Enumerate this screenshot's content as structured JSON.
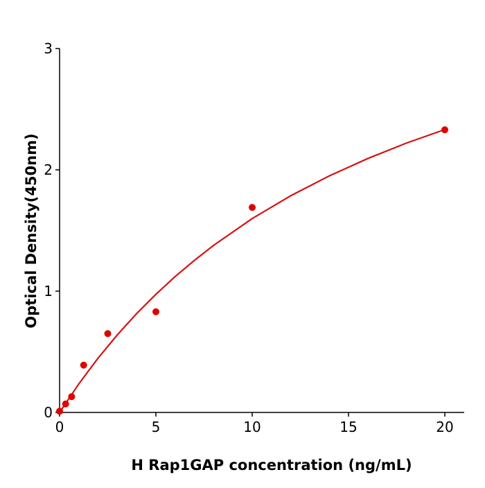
{
  "chart_data": {
    "type": "scatter",
    "title": "",
    "xlabel": "H  Rap1GAP concentration (ng/mL)",
    "ylabel": "Optical Density(450nm)",
    "xlim": [
      0,
      21
    ],
    "ylim": [
      0,
      3
    ],
    "xticks": [
      0,
      5,
      10,
      15,
      20
    ],
    "yticks": [
      0,
      1,
      2,
      3
    ],
    "grid": false,
    "colors": {
      "points": "#e00000",
      "curve": "#d81010",
      "axes": "#000000"
    },
    "series": [
      {
        "type": "scatter",
        "x": [
          0,
          0.3125,
          0.625,
          1.25,
          2.5,
          5,
          10,
          20
        ],
        "y": [
          0.01,
          0.07,
          0.13,
          0.39,
          0.65,
          0.83,
          1.69,
          2.33
        ]
      },
      {
        "type": "line",
        "fit": "saturation curve",
        "x": [
          0,
          1,
          2,
          3,
          4,
          5,
          6,
          7,
          8,
          10,
          12,
          14,
          16,
          18,
          20
        ],
        "y": [
          0,
          0.236,
          0.448,
          0.64,
          0.815,
          0.974,
          1.12,
          1.254,
          1.378,
          1.598,
          1.786,
          1.95,
          2.093,
          2.22,
          2.332
        ]
      }
    ]
  }
}
